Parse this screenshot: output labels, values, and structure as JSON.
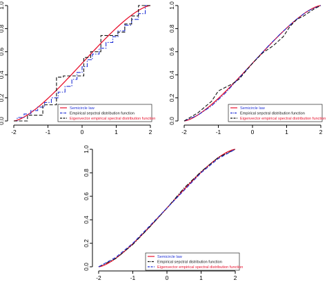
{
  "colors": {
    "semicircle": "#e8112d",
    "empirical": "#1e2fd6",
    "eigenvector": "#111111",
    "axis": "#000000"
  },
  "chart_data": [
    {
      "type": "line",
      "panel": "top-left",
      "xlim": [
        -2,
        2
      ],
      "ylim": [
        0,
        1
      ],
      "xticks": [
        "-2",
        "-1",
        "0",
        "1",
        "2"
      ],
      "yticks": [
        "0.0",
        "0.2",
        "0.4",
        "0.6",
        "0.8",
        "1.0"
      ],
      "legend_placement": "bottom-right",
      "series": [
        {
          "name": "Semicircle law",
          "color": "#e8112d",
          "style": "solid",
          "kind": "semicircle"
        },
        {
          "name": "Empirical sepctral distribution function",
          "color": "#1e2fd6",
          "style": "dashdot",
          "kind": "step",
          "x": [
            -1.9,
            -1.7,
            -1.5,
            -1.3,
            -1.1,
            -0.9,
            -0.7,
            -0.5,
            -0.3,
            -0.15,
            0.0,
            0.15,
            0.3,
            0.5,
            0.7,
            0.9,
            1.05,
            1.25,
            1.45,
            1.65,
            1.85
          ],
          "y": [
            0.03,
            0.06,
            0.09,
            0.12,
            0.16,
            0.2,
            0.25,
            0.3,
            0.36,
            0.42,
            0.47,
            0.53,
            0.58,
            0.63,
            0.68,
            0.73,
            0.78,
            0.83,
            0.88,
            0.93,
            1.0
          ]
        },
        {
          "name": "Eigenvector empirical spectral distribution function",
          "color": "#111111",
          "style": "dashed",
          "kind": "step",
          "x": [
            -1.6,
            -1.15,
            -0.75,
            -0.55,
            0.05,
            0.25,
            0.55,
            1.05,
            1.25,
            1.45,
            1.65
          ],
          "y": [
            0.05,
            0.14,
            0.38,
            0.39,
            0.55,
            0.6,
            0.74,
            0.77,
            0.84,
            0.91,
            1.0
          ]
        }
      ],
      "legend_text_colors": [
        "#1e2fd6",
        "#111111",
        "#e8112d"
      ]
    },
    {
      "type": "line",
      "panel": "top-right",
      "xlim": [
        -2,
        2
      ],
      "ylim": [
        0,
        1
      ],
      "xticks": [
        "-2",
        "-1",
        "0",
        "1",
        "2"
      ],
      "yticks": [
        "0.0",
        "0.2",
        "0.4",
        "0.6",
        "0.8",
        "1.0"
      ],
      "legend_placement": "bottom-right",
      "series": [
        {
          "name": "Semicircle law",
          "color": "#e8112d",
          "style": "solid",
          "kind": "semicircle"
        },
        {
          "name": "Empirical sepctral distribution function",
          "color": "#1e2fd6",
          "style": "dashdot",
          "kind": "curve",
          "x": [
            -2.0,
            -1.6,
            -1.2,
            -0.8,
            -0.4,
            0.0,
            0.4,
            0.8,
            1.2,
            1.6,
            2.0
          ],
          "y": [
            0.0,
            0.05,
            0.13,
            0.24,
            0.37,
            0.5,
            0.63,
            0.75,
            0.86,
            0.95,
            1.0
          ]
        },
        {
          "name": "Eigenvector empirical spectral distribution function",
          "color": "#111111",
          "style": "dashed",
          "kind": "curve",
          "x": [
            -2.0,
            -1.6,
            -1.2,
            -1.0,
            -0.6,
            -0.4,
            0.0,
            0.3,
            0.6,
            0.9,
            1.1,
            1.3,
            1.5,
            1.8,
            2.0
          ],
          "y": [
            0.0,
            0.07,
            0.17,
            0.26,
            0.32,
            0.36,
            0.5,
            0.59,
            0.65,
            0.73,
            0.82,
            0.88,
            0.91,
            0.97,
            1.0
          ]
        }
      ],
      "legend_text_colors": [
        "#1e2fd6",
        "#111111",
        "#e8112d"
      ]
    },
    {
      "type": "line",
      "panel": "bottom-center",
      "xlim": [
        -2,
        2
      ],
      "ylim": [
        0,
        1
      ],
      "xticks": [
        "-2",
        "-1",
        "0",
        "1",
        "2"
      ],
      "yticks": [
        "0.0",
        "0.2",
        "0.4",
        "0.6",
        "0.8",
        "1.0"
      ],
      "legend_placement": "bottom-right",
      "series": [
        {
          "name": "Semicircle law",
          "color": "#e8112d",
          "style": "solid",
          "kind": "semicircle"
        },
        {
          "name": "Empirical sepctral distribution function",
          "color": "#111111",
          "style": "dashdot",
          "kind": "curve",
          "x": [
            -2.0,
            -1.5,
            -1.0,
            -0.5,
            0.0,
            0.5,
            1.0,
            1.5,
            2.0
          ],
          "y": [
            0.0,
            0.07,
            0.19,
            0.34,
            0.5,
            0.67,
            0.81,
            0.93,
            1.0
          ]
        },
        {
          "name": "Eigenvector empirical spectral distribution function",
          "color": "#1e2fd6",
          "style": "dashed",
          "kind": "curve",
          "x": [
            -2.0,
            -1.5,
            -1.0,
            -0.5,
            0.0,
            0.5,
            1.0,
            1.5,
            2.0
          ],
          "y": [
            0.0,
            0.08,
            0.2,
            0.35,
            0.5,
            0.65,
            0.8,
            0.92,
            1.0
          ]
        }
      ],
      "legend_text_colors": [
        "#1e2fd6",
        "#111111",
        "#e8112d"
      ]
    }
  ]
}
